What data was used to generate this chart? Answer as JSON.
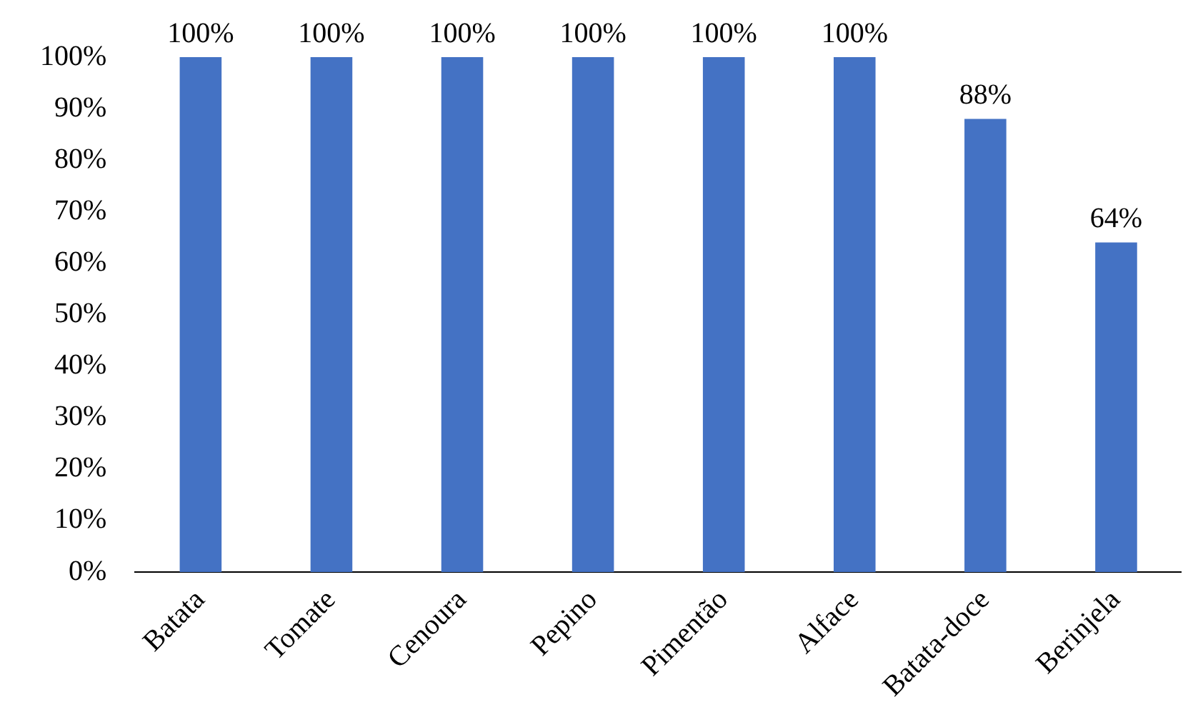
{
  "chart_data": {
    "type": "bar",
    "categories": [
      "Batata",
      "Tomate",
      "Cenoura",
      "Pepino",
      "Pimentão",
      "Alface",
      "Batata-doce",
      "Berinjela"
    ],
    "values": [
      100,
      100,
      100,
      100,
      100,
      100,
      88,
      64
    ],
    "value_labels": [
      "100%",
      "100%",
      "100%",
      "100%",
      "100%",
      "100%",
      "88%",
      "64%"
    ],
    "color": "#4472c4",
    "ylim": [
      0,
      100
    ],
    "yticks": [
      {
        "value": 0,
        "label": "0%"
      },
      {
        "value": 10,
        "label": "10%"
      },
      {
        "value": 20,
        "label": "20%"
      },
      {
        "value": 30,
        "label": "30%"
      },
      {
        "value": 40,
        "label": "40%"
      },
      {
        "value": 50,
        "label": "50%"
      },
      {
        "value": 60,
        "label": "60%"
      },
      {
        "value": 70,
        "label": "70%"
      },
      {
        "value": 80,
        "label": "80%"
      },
      {
        "value": 90,
        "label": "90%"
      },
      {
        "value": 100,
        "label": "100%"
      }
    ],
    "grid": false,
    "legend": false
  }
}
